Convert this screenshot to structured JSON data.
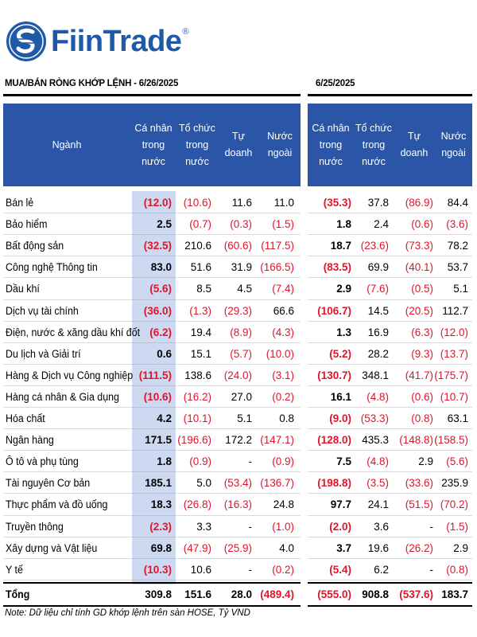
{
  "brand": {
    "name": "FiinTrade",
    "registered_mark": "®",
    "color": "#1f5aa8"
  },
  "left_title": "MUA/BÁN RÒNG KHỚP LỆNH - 6/26/2025",
  "right_title": "6/25/2025",
  "headers": {
    "sector": "Ngành",
    "individual": [
      "Cá nhân",
      "trong",
      "nước"
    ],
    "institution": [
      "Tổ chức",
      "trong",
      "nước"
    ],
    "proprietary": "Tự doanh",
    "foreign": [
      "Nước",
      "ngoài"
    ],
    "individual_r": [
      "Cá nhân",
      "trong nước"
    ],
    "institution_r": [
      "Tổ chức",
      "trong",
      "nước"
    ],
    "proprietary_r": "Tự doanh",
    "foreign_r": [
      "Nước",
      "ngoài"
    ]
  },
  "rows": [
    {
      "sector": "Bán lẻ",
      "d1": [
        "(12.0)",
        "(10.6)",
        "11.6",
        "11.0"
      ],
      "d2": [
        "(35.3)",
        "37.8",
        "(86.9)",
        "84.4"
      ]
    },
    {
      "sector": "Bảo hiểm",
      "d1": [
        "2.5",
        "(0.7)",
        "(0.3)",
        "(1.5)"
      ],
      "d2": [
        "1.8",
        "2.4",
        "(0.6)",
        "(3.6)"
      ]
    },
    {
      "sector": "Bất động sản",
      "d1": [
        "(32.5)",
        "210.6",
        "(60.6)",
        "(117.5)"
      ],
      "d2": [
        "18.7",
        "(23.6)",
        "(73.3)",
        "78.2"
      ]
    },
    {
      "sector": "Công nghệ Thông tin",
      "d1": [
        "83.0",
        "51.6",
        "31.9",
        "(166.5)"
      ],
      "d2": [
        "(83.5)",
        "69.9",
        "(40.1)",
        "53.7"
      ]
    },
    {
      "sector": "Dầu khí",
      "d1": [
        "(5.6)",
        "8.5",
        "4.5",
        "(7.4)"
      ],
      "d2": [
        "2.9",
        "(7.6)",
        "(0.5)",
        "5.1"
      ]
    },
    {
      "sector": "Dịch vụ tài chính",
      "d1": [
        "(36.0)",
        "(1.3)",
        "(29.3)",
        "66.6"
      ],
      "d2": [
        "(106.7)",
        "14.5",
        "(20.5)",
        "112.7"
      ]
    },
    {
      "sector": "Điện, nước & xăng dầu khí đốt",
      "d1": [
        "(6.2)",
        "19.4",
        "(8.9)",
        "(4.3)"
      ],
      "d2": [
        "1.3",
        "16.9",
        "(6.3)",
        "(12.0)"
      ]
    },
    {
      "sector": "Du lịch và Giải trí",
      "d1": [
        "0.6",
        "15.1",
        "(5.7)",
        "(10.0)"
      ],
      "d2": [
        "(5.2)",
        "28.2",
        "(9.3)",
        "(13.7)"
      ]
    },
    {
      "sector": "Hàng & Dịch vụ Công nghiệp",
      "d1": [
        "(111.5)",
        "138.6",
        "(24.0)",
        "(3.1)"
      ],
      "d2": [
        "(130.7)",
        "348.1",
        "(41.7)",
        "(175.7)"
      ]
    },
    {
      "sector": "Hàng cá nhân & Gia dụng",
      "d1": [
        "(10.6)",
        "(16.2)",
        "27.0",
        "(0.2)"
      ],
      "d2": [
        "16.1",
        "(4.8)",
        "(0.6)",
        "(10.7)"
      ]
    },
    {
      "sector": "Hóa chất",
      "d1": [
        "4.2",
        "(10.1)",
        "5.1",
        "0.8"
      ],
      "d2": [
        "(9.0)",
        "(53.3)",
        "(0.8)",
        "63.1"
      ]
    },
    {
      "sector": "Ngân hàng",
      "d1": [
        "171.5",
        "(196.6)",
        "172.2",
        "(147.1)"
      ],
      "d2": [
        "(128.0)",
        "435.3",
        "(148.8)",
        "(158.5)"
      ]
    },
    {
      "sector": "Ô tô và phụ tùng",
      "d1": [
        "1.8",
        "(0.9)",
        "-",
        "(0.9)"
      ],
      "d2": [
        "7.5",
        "(4.8)",
        "2.9",
        "(5.6)"
      ]
    },
    {
      "sector": "Tài nguyên Cơ bản",
      "d1": [
        "185.1",
        "5.0",
        "(53.4)",
        "(136.7)"
      ],
      "d2": [
        "(198.8)",
        "(3.5)",
        "(33.6)",
        "235.9"
      ]
    },
    {
      "sector": "Thực phẩm và đồ uống",
      "d1": [
        "18.3",
        "(26.8)",
        "(16.3)",
        "24.8"
      ],
      "d2": [
        "97.7",
        "24.1",
        "(51.5)",
        "(70.2)"
      ]
    },
    {
      "sector": "Truyền thông",
      "d1": [
        "(2.3)",
        "3.3",
        "-",
        "(1.0)"
      ],
      "d2": [
        "(2.0)",
        "3.6",
        "-",
        "(1.5)"
      ]
    },
    {
      "sector": "Xây dựng và Vật liệu",
      "d1": [
        "69.8",
        "(47.9)",
        "(25.9)",
        "4.0"
      ],
      "d2": [
        "3.7",
        "19.6",
        "(26.2)",
        "2.9"
      ]
    },
    {
      "sector": "Y tế",
      "d1": [
        "(10.3)",
        "10.6",
        "-",
        "(0.2)"
      ],
      "d2": [
        "(5.4)",
        "6.2",
        "-",
        "(0.8)"
      ]
    }
  ],
  "total": {
    "sector": "Tổng",
    "d1": [
      "309.8",
      "151.6",
      "28.0",
      "(489.4)"
    ],
    "d2": [
      "(555.0)",
      "908.8",
      "(537.6)",
      "183.7"
    ]
  },
  "note": "Note: Dữ liệu chỉ tính GD khớp lệnh trên sàn HOSE, Tỷ VND",
  "colors": {
    "header_bg": "#2b56a8",
    "highlight": "#cdd9f1",
    "negative": "#e0142a"
  }
}
